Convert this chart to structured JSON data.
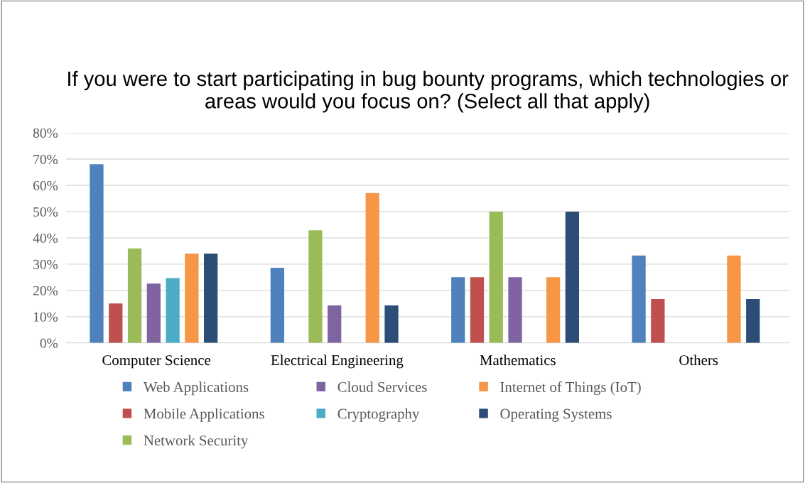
{
  "chart_data": {
    "type": "bar",
    "title": "If you were to start participating in bug bounty programs, which technologies or areas would you focus on? (Select all that apply)",
    "categories": [
      "Computer Science",
      "Electrical Engineering",
      "Mathematics",
      "Others"
    ],
    "series": [
      {
        "name": "Web Applications",
        "color": "#4f81bd",
        "values": [
          68,
          28.6,
          25,
          33.3
        ]
      },
      {
        "name": "Mobile Applications",
        "color": "#c0504d",
        "values": [
          15,
          0,
          25,
          16.7
        ]
      },
      {
        "name": "Network Security",
        "color": "#9bbb59",
        "values": [
          36,
          42.9,
          50,
          0
        ]
      },
      {
        "name": "Cloud Services",
        "color": "#8064a2",
        "values": [
          22.6,
          14.3,
          25,
          0
        ]
      },
      {
        "name": "Cryptography",
        "color": "#4bacc6",
        "values": [
          24.7,
          0,
          0,
          0
        ]
      },
      {
        "name": "Internet of Things (IoT)",
        "color": "#f79646",
        "values": [
          34,
          57.1,
          25,
          33.3
        ]
      },
      {
        "name": "Operating Systems",
        "color": "#2c4d75",
        "values": [
          34,
          14.3,
          50,
          16.7
        ]
      }
    ],
    "ylim": [
      0,
      80
    ],
    "yticks": [
      {
        "value": 0,
        "label": "0%"
      },
      {
        "value": 10,
        "label": "10%"
      },
      {
        "value": 20,
        "label": "20%"
      },
      {
        "value": 30,
        "label": "30%"
      },
      {
        "value": 40,
        "label": "40%"
      },
      {
        "value": 50,
        "label": "50%"
      },
      {
        "value": 60,
        "label": "60%"
      },
      {
        "value": 70,
        "label": "70%"
      },
      {
        "value": 80,
        "label": "80%"
      }
    ],
    "grid": "y",
    "legend": "bottom"
  }
}
